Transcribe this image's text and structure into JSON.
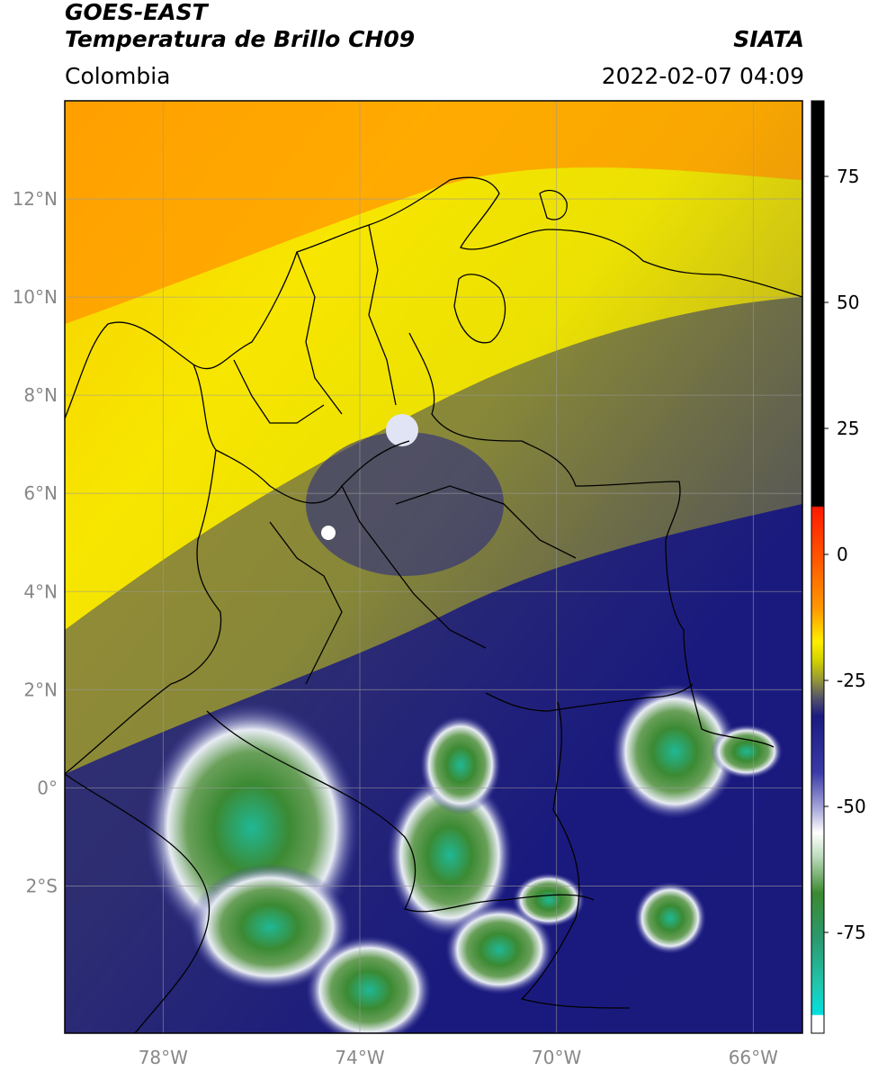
{
  "header": {
    "satellite": "GOES-EAST",
    "product": "Temperatura de Brillo CH09",
    "region": "Colombia",
    "agency": "SIATA",
    "datetime": "2022-02-07 04:09"
  },
  "map": {
    "lon_range": [
      -80,
      -65
    ],
    "lat_range": [
      -5,
      14
    ],
    "lon_ticks": [
      {
        "value": -78,
        "label": "78°W"
      },
      {
        "value": -74,
        "label": "74°W"
      },
      {
        "value": -70,
        "label": "70°W"
      },
      {
        "value": -66,
        "label": "66°W"
      }
    ],
    "lat_ticks": [
      {
        "value": 12,
        "label": "12°N"
      },
      {
        "value": 10,
        "label": "10°N"
      },
      {
        "value": 8,
        "label": "8°N"
      },
      {
        "value": 6,
        "label": "6°N"
      },
      {
        "value": 4,
        "label": "4°N"
      },
      {
        "value": 2,
        "label": "2°N"
      },
      {
        "value": 0,
        "label": "0°"
      },
      {
        "value": -2,
        "label": "2°S"
      }
    ],
    "grid": true
  },
  "colorbar": {
    "range": [
      -95,
      90
    ],
    "ticks": [
      {
        "value": 75,
        "label": "75"
      },
      {
        "value": 50,
        "label": "50"
      },
      {
        "value": 25,
        "label": "25"
      },
      {
        "value": 0,
        "label": "0"
      },
      {
        "value": -25,
        "label": "-25"
      },
      {
        "value": -50,
        "label": "-50"
      },
      {
        "value": -75,
        "label": "-75"
      }
    ],
    "colors": {
      "black": "#000000",
      "red": "#ff1a00",
      "orange": "#ff9900",
      "yellow": "#ffee00",
      "olive": "#808040",
      "navy": "#1a1a80",
      "white": "#ffffff",
      "green": "#3a8a30",
      "teal": "#20c0a0",
      "cyan": "#00e0e0"
    }
  }
}
